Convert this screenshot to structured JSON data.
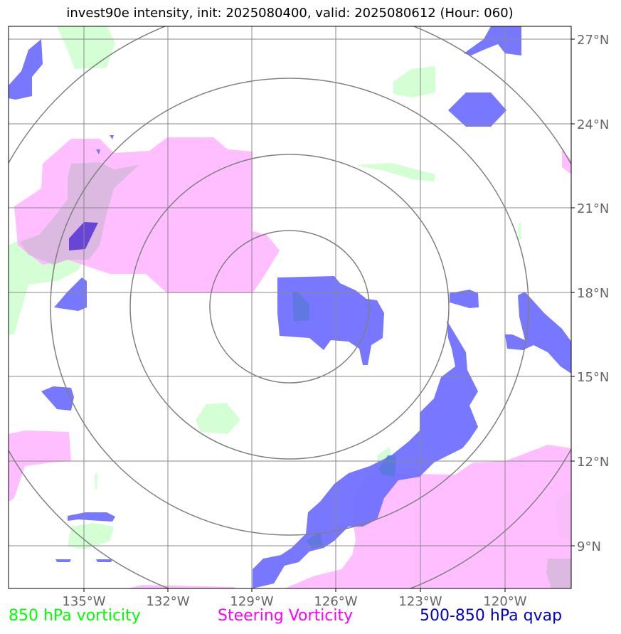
{
  "title": "invest90e intensity, init: 2025080400, valid: 2025080612 (Hour: 060)",
  "lon_ticks": [
    "135°W",
    "132°W",
    "129°W",
    "126°W",
    "123°W",
    "120°W"
  ],
  "lat_ticks": [
    "27°N",
    "24°N",
    "21°N",
    "18°N",
    "15°N",
    "12°N",
    "9°N"
  ],
  "legend": [
    {
      "label": "850 hPa vorticity",
      "color": "#00ff00"
    },
    {
      "label": "Steering Vorticity",
      "color": "#ff00ff"
    },
    {
      "label": "500-850 hPa qvap",
      "color": "#0000cd"
    }
  ],
  "colors": {
    "vort850": "#ccffcc",
    "steering": "#ffb3ff",
    "qvap": "#7070ff",
    "qvap_dark": "#5a3ad6",
    "grid": "#888888",
    "rings": "#808080"
  }
}
